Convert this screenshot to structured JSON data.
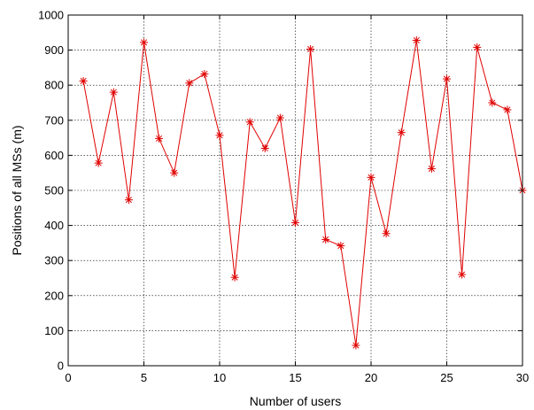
{
  "chart_data": {
    "type": "line",
    "title": "",
    "xlabel": "Number of users",
    "ylabel": "Positions of all MSs (m)",
    "xlim": [
      0,
      30
    ],
    "ylim": [
      0,
      1000
    ],
    "xticks": [
      0,
      5,
      10,
      15,
      20,
      25,
      30
    ],
    "yticks": [
      0,
      100,
      200,
      300,
      400,
      500,
      600,
      700,
      800,
      900,
      1000
    ],
    "grid": true,
    "legend": "none",
    "marker": "plus-star",
    "line_color": "#e00000",
    "series": [
      {
        "x": [
          1,
          2,
          3,
          4,
          5,
          6,
          7,
          8,
          9,
          10,
          11,
          12,
          13,
          14,
          15,
          16,
          17,
          18,
          19,
          20,
          21,
          22,
          23,
          24,
          25,
          26,
          27,
          28,
          29,
          30
        ],
        "values": [
          812,
          578,
          780,
          473,
          922,
          648,
          550,
          806,
          832,
          657,
          252,
          695,
          620,
          707,
          408,
          903,
          360,
          342,
          58,
          537,
          377,
          665,
          928,
          562,
          818,
          260,
          908,
          750,
          730,
          500
        ]
      }
    ]
  }
}
